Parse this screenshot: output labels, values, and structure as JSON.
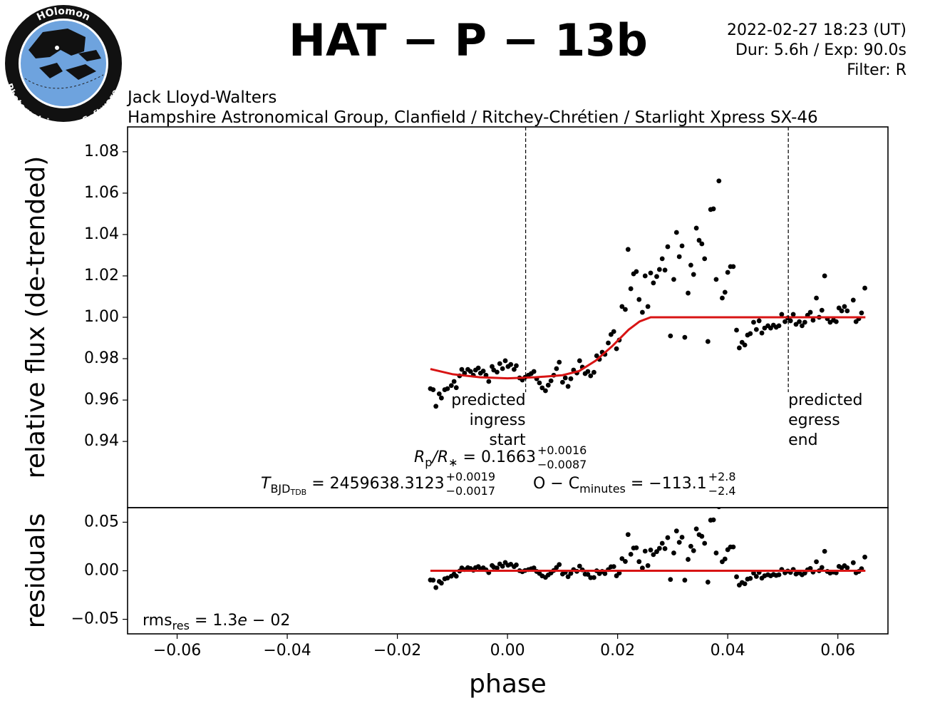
{
  "header": {
    "logo": [
      "HOlomon",
      "Photometric",
      "Software"
    ],
    "info": [
      "2022-02-27 18:23 (UT)",
      "Dur: 5.6h / Exp: 90.0s",
      "Filter: R"
    ],
    "observer": [
      "Jack Lloyd-Walters",
      "Hampshire Astronomical Group, Clanfield / Ritchey-Chrétien / Starlight Xpress SX-46"
    ]
  },
  "chart_data": [
    {
      "type": "scatter",
      "title": "HAT − P − 13b",
      "ylabel": "relative flux (de-trended)",
      "xlim": [
        -0.069,
        0.0691
      ],
      "ylim": [
        0.908,
        1.092
      ],
      "yticks": [
        0.94,
        0.96,
        0.98,
        {
          "value": 1.0,
          "label": "1.00"
        },
        1.02,
        1.04,
        1.06,
        1.08
      ],
      "x": [
        -0.014,
        -0.0135,
        -0.013,
        -0.0124,
        -0.012,
        -0.0114,
        -0.0109,
        -0.0102,
        -0.0097,
        -0.0093,
        -0.0087,
        -0.0083,
        -0.0078,
        -0.0072,
        -0.0067,
        -0.0062,
        -0.0058,
        -0.0053,
        -0.0049,
        -0.0044,
        -0.0039,
        -0.0034,
        -0.0028,
        -0.0025,
        -0.0019,
        -0.0014,
        -0.0009,
        -0.0004,
        0.0001,
        0.0006,
        0.0012,
        0.0016,
        0.0022,
        0.0027,
        0.0032,
        0.0038,
        0.0043,
        0.0048,
        0.0053,
        0.0058,
        0.0063,
        0.0069,
        0.0074,
        0.0079,
        0.0084,
        0.0089,
        0.0094,
        0.01,
        0.0105,
        0.011,
        0.0115,
        0.012,
        0.0126,
        0.0131,
        0.0136,
        0.0141,
        0.0146,
        0.0151,
        0.0157,
        0.0162,
        0.0167,
        0.0172,
        0.0177,
        0.0183,
        0.0188,
        0.0193,
        0.0198,
        0.0203,
        0.0208,
        0.0214,
        0.0219,
        0.0224,
        0.0229,
        0.0234,
        0.0239,
        0.0245,
        0.025,
        0.0255,
        0.026,
        0.0265,
        0.0271,
        0.0276,
        0.0281,
        0.0286,
        0.0291,
        0.0296,
        0.0302,
        0.0307,
        0.0312,
        0.0317,
        0.0322,
        0.0328,
        0.0333,
        0.0338,
        0.0343,
        0.0348,
        0.0353,
        0.0358,
        0.0364,
        0.0369,
        0.0374,
        0.0379,
        0.0384,
        0.039,
        0.0395,
        0.04,
        0.0405,
        0.041,
        0.0416,
        0.0421,
        0.0426,
        0.0431,
        0.0436,
        0.0441,
        0.0447,
        0.0452,
        0.0457,
        0.0462,
        0.0467,
        0.0473,
        0.0478,
        0.0483,
        0.0488,
        0.0493,
        0.0498,
        0.0504,
        0.0509,
        0.0514,
        0.0519,
        0.0524,
        0.053,
        0.0535,
        0.054,
        0.0545,
        0.055,
        0.0555,
        0.0561,
        0.0566,
        0.0571,
        0.0576,
        0.0581,
        0.0586,
        0.0592,
        0.0597,
        0.0602,
        0.0607,
        0.0612,
        0.0617,
        0.0628,
        0.0633,
        0.0638,
        0.0643,
        0.0649
      ],
      "series": [
        {
          "color": "#000000",
          "values": [
            0.9655,
            0.965,
            0.957,
            0.963,
            0.961,
            0.965,
            0.9655,
            0.967,
            0.969,
            0.966,
            0.9717,
            0.9748,
            0.973,
            0.9748,
            0.9738,
            0.972,
            0.9745,
            0.9755,
            0.973,
            0.974,
            0.972,
            0.969,
            0.9762,
            0.9745,
            0.9735,
            0.9776,
            0.9752,
            0.979,
            0.9762,
            0.9772,
            0.9748,
            0.9766,
            0.9707,
            0.9697,
            0.971,
            0.972,
            0.9728,
            0.9738,
            0.9703,
            0.9683,
            0.9659,
            0.9645,
            0.9672,
            0.9693,
            0.972,
            0.9752,
            0.9783,
            0.9686,
            0.9707,
            0.9666,
            0.9703,
            0.9745,
            0.9731,
            0.979,
            0.9759,
            0.9728,
            0.9738,
            0.9717,
            0.9734,
            0.9814,
            0.9797,
            0.9831,
            0.9821,
            0.9876,
            0.9917,
            0.9931,
            0.9848,
            0.989,
            1.0052,
            1.0038,
            1.0328,
            1.0138,
            1.021,
            1.0221,
            1.0086,
            1.0024,
            1.02,
            1.0052,
            1.0214,
            1.0166,
            1.0197,
            1.0231,
            1.0283,
            1.0228,
            1.0341,
            0.991,
            1.0183,
            1.041,
            1.0293,
            1.0345,
            0.9903,
            1.0117,
            1.0252,
            1.0207,
            1.0431,
            1.0372,
            1.0355,
            1.0283,
            0.9883,
            1.0521,
            1.0524,
            1.0183,
            1.0659,
            1.0093,
            1.0121,
            1.0217,
            1.0245,
            1.0245,
            0.9938,
            0.9852,
            0.9879,
            0.9866,
            0.9914,
            0.9921,
            0.9976,
            0.9941,
            0.9983,
            0.9924,
            0.9948,
            0.9959,
            0.9948,
            0.9962,
            0.9952,
            0.9959,
            1.0014,
            0.9979,
            0.9997,
            0.9983,
            1.0014,
            0.9966,
            0.9979,
            0.9959,
            0.9976,
            1.001,
            1.0024,
            0.9986,
            1.0093,
            1.0,
            1.0034,
            1.02,
            0.9993,
            0.9976,
            0.9986,
            0.9979,
            1.0045,
            1.0031,
            1.0052,
            1.0031,
            1.0083,
            0.9979,
            0.9993,
            1.0021,
            1.0141
          ]
        }
      ],
      "model": {
        "color": "#d81414",
        "x": [
          -0.014,
          -0.01,
          -0.005,
          0,
          0.005,
          0.01,
          0.013,
          0.016,
          0.019,
          0.022,
          0.024,
          0.026,
          0.065
        ],
        "values": [
          0.975,
          0.9725,
          0.971,
          0.9705,
          0.971,
          0.972,
          0.974,
          0.979,
          0.986,
          0.994,
          0.998,
          1.0,
          1.0
        ]
      },
      "vlines": [
        {
          "value": 0.0033,
          "label": [
            "predicted",
            "ingress",
            "start"
          ],
          "label_align": "right"
        },
        {
          "value": 0.051,
          "label": [
            "predicted",
            "egress",
            "end"
          ],
          "label_align": "left"
        }
      ],
      "annotations": {
        "rp": {
          "text": [
            "R",
            "p",
            "/R",
            "∗",
            " = 0.1663"
          ],
          "upper": "+0.0016",
          "lower": "−0.0087"
        },
        "tc": {
          "text": [
            "T",
            "BJD",
            "TDB",
            " = 2459638.3123"
          ],
          "upper": "+0.0019",
          "lower": "−0.0017"
        },
        "oc": {
          "text": [
            "O − C",
            "minutes",
            " = −113.1"
          ],
          "upper": "+2.8",
          "lower": "−2.4"
        }
      }
    },
    {
      "type": "scatter",
      "ylabel": "residuals",
      "xlabel": "phase",
      "xlim": [
        -0.069,
        0.0691
      ],
      "ylim": [
        -0.065,
        0.065
      ],
      "yticks": [
        {
          "value": -0.05,
          "label": "−0.05"
        },
        {
          "value": 0,
          "label": "0.00"
        },
        0.05
      ],
      "xticks": [
        {
          "value": -0.06,
          "label": "−0.06"
        },
        {
          "value": -0.04,
          "label": "−0.04"
        },
        {
          "value": -0.02,
          "label": "−0.02"
        },
        {
          "value": 0,
          "label": "0.00"
        },
        {
          "value": 0.02,
          "label": "0.02"
        },
        {
          "value": 0.04,
          "label": "0.04"
        },
        {
          "value": 0.06,
          "label": "0.06"
        }
      ],
      "x": [
        -0.014,
        -0.0135,
        -0.013,
        -0.0124,
        -0.012,
        -0.0114,
        -0.0109,
        -0.0102,
        -0.0097,
        -0.0093,
        -0.0087,
        -0.0083,
        -0.0078,
        -0.0072,
        -0.0067,
        -0.0062,
        -0.0058,
        -0.0053,
        -0.0049,
        -0.0044,
        -0.0039,
        -0.0034,
        -0.0028,
        -0.0025,
        -0.0019,
        -0.0014,
        -0.0009,
        -0.0004,
        0.0001,
        0.0006,
        0.0012,
        0.0016,
        0.0022,
        0.0027,
        0.0032,
        0.0038,
        0.0043,
        0.0048,
        0.0053,
        0.0058,
        0.0063,
        0.0069,
        0.0074,
        0.0079,
        0.0084,
        0.0089,
        0.0094,
        0.01,
        0.0105,
        0.011,
        0.0115,
        0.012,
        0.0126,
        0.0131,
        0.0136,
        0.0141,
        0.0146,
        0.0151,
        0.0157,
        0.0162,
        0.0167,
        0.0172,
        0.0177,
        0.0183,
        0.0188,
        0.0193,
        0.0198,
        0.0203,
        0.0208,
        0.0214,
        0.0219,
        0.0224,
        0.0229,
        0.0234,
        0.0239,
        0.0245,
        0.025,
        0.0255,
        0.026,
        0.0265,
        0.0271,
        0.0276,
        0.0281,
        0.0286,
        0.0291,
        0.0296,
        0.0302,
        0.0307,
        0.0312,
        0.0317,
        0.0322,
        0.0328,
        0.0333,
        0.0338,
        0.0343,
        0.0348,
        0.0353,
        0.0358,
        0.0364,
        0.0369,
        0.0374,
        0.0379,
        0.0384,
        0.039,
        0.0395,
        0.04,
        0.0405,
        0.041,
        0.0416,
        0.0421,
        0.0426,
        0.0431,
        0.0436,
        0.0441,
        0.0447,
        0.0452,
        0.0457,
        0.0462,
        0.0467,
        0.0473,
        0.0478,
        0.0483,
        0.0488,
        0.0493,
        0.0498,
        0.0504,
        0.0509,
        0.0514,
        0.0519,
        0.0524,
        0.053,
        0.0535,
        0.054,
        0.0545,
        0.055,
        0.0555,
        0.0561,
        0.0566,
        0.0571,
        0.0576,
        0.0581,
        0.0586,
        0.0592,
        0.0597,
        0.0602,
        0.0607,
        0.0612,
        0.0617,
        0.0628,
        0.0633,
        0.0638,
        0.0643,
        0.0649
      ],
      "series": [
        {
          "color": "#000000",
          "values": [
            -0.0095,
            -0.0097,
            -0.0173,
            -0.011,
            -0.0127,
            -0.0083,
            -0.0075,
            -0.0056,
            -0.0034,
            -0.0056,
            -0.0003,
            0.0029,
            0.0012,
            0.0032,
            0.0023,
            0.0006,
            0.0032,
            0.0043,
            0.0019,
            0.003,
            0.001,
            -0.0019,
            0.0054,
            0.0037,
            0.0028,
            0.007,
            0.0046,
            0.0085,
            0.0057,
            0.0067,
            0.0042,
            0.006,
            0.0001,
            -0.001,
            0.0003,
            0.0012,
            0.002,
            0.0029,
            -0.0007,
            -0.0027,
            -0.0053,
            -0.0068,
            -0.0043,
            -0.0023,
            0.0003,
            0.0034,
            0.0064,
            -0.0034,
            -0.0016,
            -0.0061,
            -0.0027,
            0.0012,
            -0.0006,
            0.0048,
            0.0009,
            -0.0035,
            -0.0037,
            -0.0071,
            -0.007,
            0,
            -0.0029,
            -0.0007,
            -0.0029,
            0.0012,
            0.0041,
            0.0043,
            -0.0052,
            -0.0024,
            0.0125,
            0.0096,
            0.0373,
            0.017,
            0.0234,
            0.0237,
            0.0094,
            0.0028,
            0.0202,
            0.0053,
            0.0214,
            0.0166,
            0.0197,
            0.0231,
            0.0283,
            0.0228,
            0.0341,
            -0.009,
            0.0183,
            0.041,
            0.0293,
            0.0345,
            -0.0097,
            0.0117,
            0.0252,
            0.0207,
            0.0431,
            0.0372,
            0.0355,
            0.0283,
            -0.0117,
            0.0521,
            0.0524,
            0.0183,
            0.0659,
            0.0093,
            0.0121,
            0.0217,
            0.0245,
            0.0245,
            -0.0062,
            -0.0148,
            -0.0121,
            -0.0134,
            -0.0086,
            -0.0079,
            -0.0024,
            -0.0059,
            -0.0017,
            -0.0076,
            -0.0052,
            -0.0041,
            -0.0052,
            -0.0038,
            -0.0048,
            -0.0041,
            0.0014,
            -0.0021,
            -0.0003,
            -0.0017,
            0.0014,
            -0.0034,
            -0.0021,
            -0.0041,
            -0.0024,
            0.001,
            0.0024,
            -0.0014,
            0.0093,
            0,
            0.0034,
            0.02,
            -0.0007,
            -0.0024,
            -0.0014,
            -0.0021,
            0.0045,
            0.0031,
            0.0052,
            0.0031,
            0.0083,
            -0.0021,
            -0.0007,
            0.0021,
            0.0141
          ]
        }
      ],
      "model": {
        "color": "#d81414",
        "x": [
          -0.014,
          0.065
        ],
        "values": [
          0,
          0
        ]
      },
      "annotations": {
        "rms": [
          "rms",
          "res",
          " = 1.3",
          "e",
          " − 02"
        ]
      }
    }
  ]
}
